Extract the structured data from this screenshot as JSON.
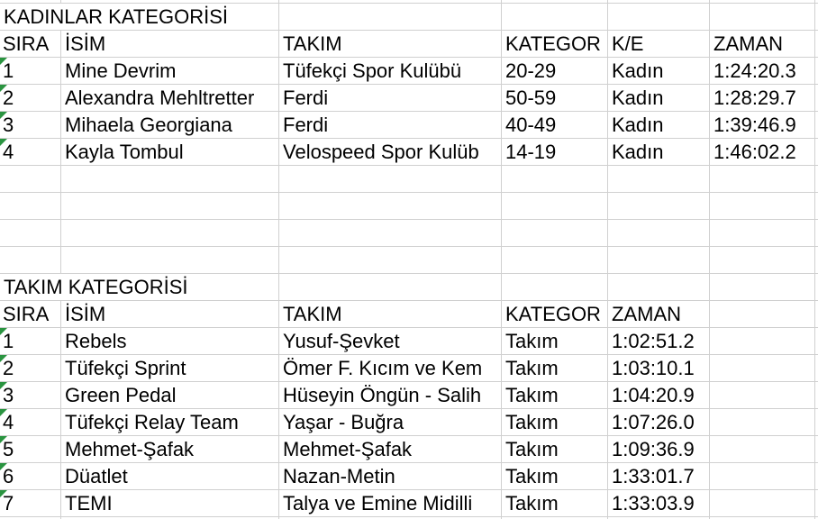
{
  "sheet": {
    "gridColor": "#d0d0d0",
    "markerColor": "#2a9440",
    "table1": {
      "title": "KADINLAR KATEGORİSİ",
      "headers": [
        "SIRA",
        "İSİM",
        "TAKIM",
        "KATEGOR",
        "K/E",
        "ZAMAN"
      ],
      "rows": [
        [
          "1",
          "Mine Devrim",
          "Tüfekçi Spor Kulübü",
          "20-29",
          "Kadın",
          "1:24:20.3"
        ],
        [
          "2",
          "Alexandra Mehltretter",
          "Ferdi",
          "50-59",
          "Kadın",
          "1:28:29.7"
        ],
        [
          "3",
          "Mihaela Georgiana",
          "Ferdi",
          "40-49",
          "Kadın",
          "1:39:46.9"
        ],
        [
          "4",
          "Kayla Tombul",
          "Velospeed Spor Kulüb",
          "14-19",
          "Kadın",
          "1:46:02.2"
        ]
      ]
    },
    "table2": {
      "title": "TAKIM KATEGORİSİ",
      "headers": [
        "SIRA",
        "İSİM",
        "TAKIM",
        "KATEGOR",
        "ZAMAN"
      ],
      "rows": [
        [
          "1",
          "Rebels",
          "Yusuf-Şevket",
          "Takım",
          "1:02:51.2"
        ],
        [
          "2",
          "Tüfekçi Sprint",
          "Ömer F. Kıcım ve Kem",
          "Takım",
          "1:03:10.1"
        ],
        [
          "3",
          "Green Pedal",
          "Hüseyin Öngün - Salih",
          "Takım",
          "1:04:20.9"
        ],
        [
          "4",
          "Tüfekçi Relay Team",
          "Yaşar - Buğra",
          "Takım",
          "1:07:26.0"
        ],
        [
          "5",
          "Mehmet-Şafak",
          "Mehmet-Şafak",
          "Takım",
          "1:09:36.9"
        ],
        [
          "6",
          "Düatlet",
          "Nazan-Metin",
          "Takım",
          "1:33:01.7"
        ],
        [
          "7",
          "TEMI",
          "Talya ve Emine Midilli",
          "Takım",
          "1:33:03.9"
        ]
      ]
    }
  }
}
